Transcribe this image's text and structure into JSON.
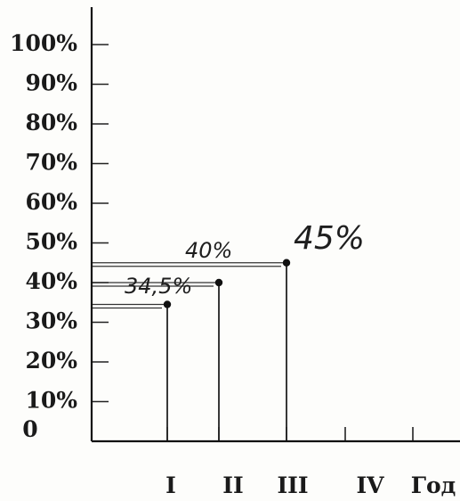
{
  "chart_data": {
    "type": "line",
    "title": "",
    "xlabel": "",
    "ylabel": "",
    "y_tick_labels": [
      "0",
      "10%",
      "20%",
      "30%",
      "40%",
      "50%",
      "60%",
      "70%",
      "80%",
      "90%",
      "100%"
    ],
    "y_ticks": [
      0,
      10,
      20,
      30,
      40,
      50,
      60,
      70,
      80,
      90,
      100
    ],
    "ylim": [
      0,
      100
    ],
    "categories": [
      "I",
      "II",
      "III",
      "IV",
      "Год"
    ],
    "values": [
      34.5,
      40,
      45,
      null,
      null
    ],
    "data_labels": [
      "34,5%",
      "40%",
      "45%",
      "",
      ""
    ],
    "grid": false,
    "legend": "none"
  }
}
